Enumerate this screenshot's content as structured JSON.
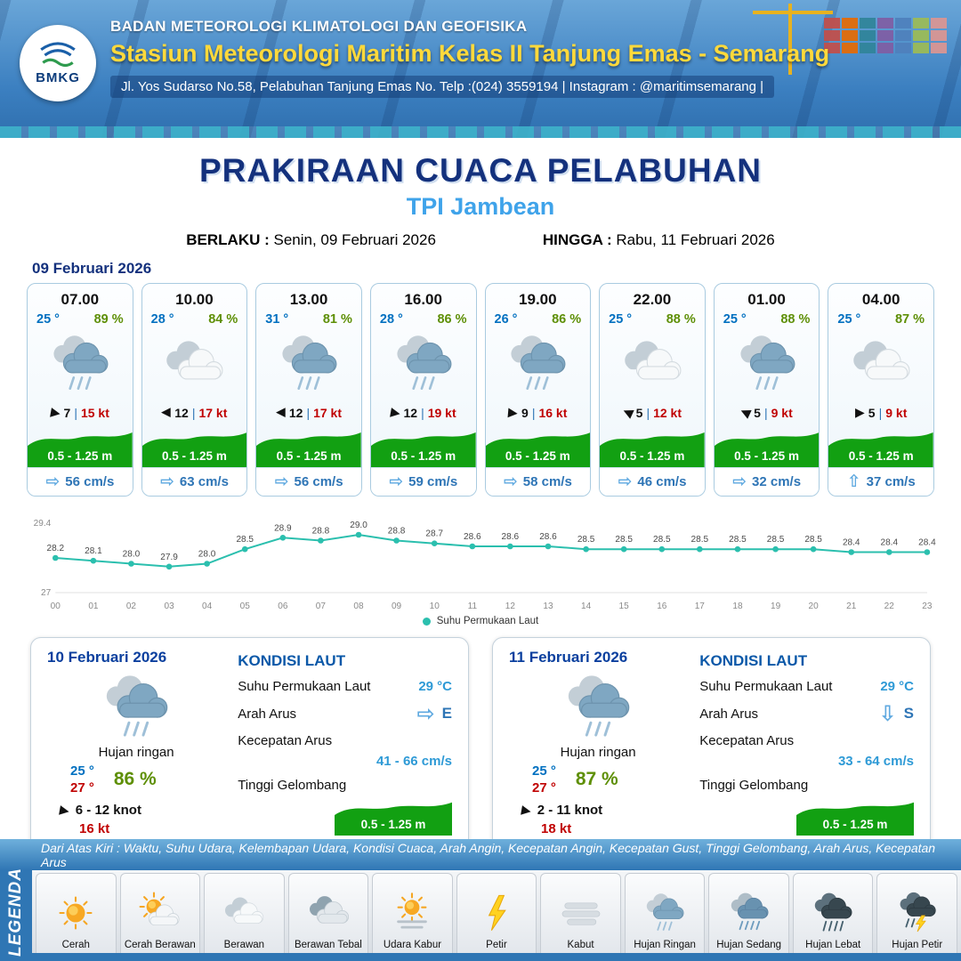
{
  "header": {
    "logo_text": "BMKG",
    "org": "BADAN METEOROLOGI KLIMATOLOGI DAN GEOFISIKA",
    "station": "Stasiun Meteorologi Maritim Kelas II Tanjung Emas - Semarang",
    "address": "Jl. Yos Sudarso No.58, Pelabuhan Tanjung Emas No. Telp :(024) 3559194 | Instagram : @maritimsemarang |"
  },
  "title": {
    "main": "PRAKIRAAN CUACA PELABUHAN",
    "location": "TPI Jambean",
    "berlaku_label": "BERLAKU :",
    "berlaku_value": "Senin, 09 Februari 2026",
    "hingga_label": "HINGGA :",
    "hingga_value": "Rabu, 11 Februari 2026"
  },
  "forecast_date": "09 Februari 2026",
  "strings": {
    "wind_sep": "|"
  },
  "hourly_cards": [
    {
      "time": "07.00",
      "temp": "25 °",
      "humidity": "89 %",
      "weather_icon": "hujan-ringan",
      "wind_rot": 10,
      "wind_speed": "7",
      "gust": "15 kt",
      "wave": "0.5 - 1.25 m",
      "current_arrow": "E",
      "current": "56 cm/s"
    },
    {
      "time": "10.00",
      "temp": "28 °",
      "humidity": "84 %",
      "weather_icon": "berawan",
      "wind_rot": 180,
      "wind_speed": "12",
      "gust": "17 kt",
      "wave": "0.5 - 1.25 m",
      "current_arrow": "E",
      "current": "63 cm/s"
    },
    {
      "time": "13.00",
      "temp": "31 °",
      "humidity": "81 %",
      "weather_icon": "hujan-ringan",
      "wind_rot": 180,
      "wind_speed": "12",
      "gust": "17 kt",
      "wave": "0.5 - 1.25 m",
      "current_arrow": "E",
      "current": "56 cm/s"
    },
    {
      "time": "16.00",
      "temp": "28 °",
      "humidity": "86 %",
      "weather_icon": "hujan-ringan",
      "wind_rot": 10,
      "wind_speed": "12",
      "gust": "19 kt",
      "wave": "0.5 - 1.25 m",
      "current_arrow": "E",
      "current": "59 cm/s"
    },
    {
      "time": "19.00",
      "temp": "26 °",
      "humidity": "86 %",
      "weather_icon": "hujan-ringan",
      "wind_rot": 5,
      "wind_speed": "9",
      "gust": "16 kt",
      "wave": "0.5 - 1.25 m",
      "current_arrow": "E",
      "current": "58 cm/s"
    },
    {
      "time": "22.00",
      "temp": "25 °",
      "humidity": "88 %",
      "weather_icon": "berawan",
      "wind_rot": 205,
      "wind_speed": "5",
      "gust": "12 kt",
      "wave": "0.5 - 1.25 m",
      "current_arrow": "E",
      "current": "46 cm/s"
    },
    {
      "time": "01.00",
      "temp": "25 °",
      "humidity": "88 %",
      "weather_icon": "hujan-ringan",
      "wind_rot": 205,
      "wind_speed": "5",
      "gust": "9 kt",
      "wave": "0.5 - 1.25 m",
      "current_arrow": "E",
      "current": "32 cm/s"
    },
    {
      "time": "04.00",
      "temp": "25 °",
      "humidity": "87 %",
      "weather_icon": "berawan",
      "wind_rot": 0,
      "wind_speed": "5",
      "gust": "9 kt",
      "wave": "0.5 - 1.25 m",
      "current_arrow": "N",
      "current": "37 cm/s"
    }
  ],
  "chart_data": {
    "type": "line",
    "x": [
      "00",
      "01",
      "02",
      "03",
      "04",
      "05",
      "06",
      "07",
      "08",
      "09",
      "10",
      "11",
      "12",
      "13",
      "14",
      "15",
      "16",
      "17",
      "18",
      "19",
      "20",
      "21",
      "22",
      "23"
    ],
    "values": [
      28.2,
      28.1,
      28.0,
      27.9,
      28.0,
      28.5,
      28.9,
      28.8,
      29.0,
      28.8,
      28.7,
      28.6,
      28.6,
      28.6,
      28.5,
      28.5,
      28.5,
      28.5,
      28.5,
      28.5,
      28.5,
      28.4,
      28.4,
      28.4
    ],
    "ylim": [
      27,
      29.4
    ],
    "ytick_labels": [
      "29.4",
      "27"
    ],
    "legend": "Suhu Permukaan Laut",
    "legend_position": "bottom-center",
    "grid": false,
    "line_color": "#2bbfae"
  },
  "daily_cards": [
    {
      "date": "10 Februari 2026",
      "weather_icon": "hujan-ringan",
      "condition": "Hujan ringan",
      "temp_min": "25 °",
      "temp_max": "27 °",
      "humidity": "86 %",
      "wind_rot": 10,
      "wind_range": "6  - 12 knot",
      "gust": "16 kt",
      "sea_title": "KONDISI LAUT",
      "sst_label": "Suhu Permukaan Laut",
      "sst_value": "29 °C",
      "current_dir_label": "Arah Arus",
      "current_dir_arrow": "E",
      "current_dir": "E",
      "current_speed_label": "Kecepatan Arus",
      "current_speed": "41 - 66 cm/s",
      "wave_label": "Tinggi Gelombang",
      "wave": "0.5 - 1.25 m"
    },
    {
      "date": "11 Februari 2026",
      "weather_icon": "hujan-ringan",
      "condition": "Hujan ringan",
      "temp_min": "25 °",
      "temp_max": "27 °",
      "humidity": "87 %",
      "wind_rot": 10,
      "wind_range": "2  - 11 knot",
      "gust": "18 kt",
      "sea_title": "KONDISI LAUT",
      "sst_label": "Suhu Permukaan Laut",
      "sst_value": "29 °C",
      "current_dir_label": "Arah Arus",
      "current_dir_arrow": "S",
      "current_dir": "S",
      "current_speed_label": "Kecepatan Arus",
      "current_speed": "33 - 64 cm/s",
      "wave_label": "Tinggi Gelombang",
      "wave": "0.5 - 1.25 m"
    }
  ],
  "legend": {
    "description": "Dari Atas Kiri : Waktu, Suhu Udara, Kelembapan Udara, Kondisi Cuaca, Arah Angin, Kecepatan Angin, Kecepatan Gust, Tinggi Gelombang, Arah Arus, Kecepatan Arus",
    "side_label": "LEGENDA",
    "items": [
      {
        "label": "Cerah",
        "icon": "cerah"
      },
      {
        "label": "Cerah Berawan",
        "icon": "cerah-berawan"
      },
      {
        "label": "Berawan",
        "icon": "berawan"
      },
      {
        "label": "Berawan Tebal",
        "icon": "berawan-tebal"
      },
      {
        "label": "Udara Kabur",
        "icon": "udara-kabur"
      },
      {
        "label": "Petir",
        "icon": "petir"
      },
      {
        "label": "Kabut",
        "icon": "kabut"
      },
      {
        "label": "Hujan Ringan",
        "icon": "hujan-ringan"
      },
      {
        "label": "Hujan Sedang",
        "icon": "hujan-sedang"
      },
      {
        "label": "Hujan Lebat",
        "icon": "hujan-lebat"
      },
      {
        "label": "Hujan Petir",
        "icon": "hujan-petir"
      }
    ]
  },
  "colors": {
    "title_navy": "#14317d",
    "subtitle_blue": "#3fa3ea",
    "temp_blue": "#0070c0",
    "humidity_green": "#5e8f06",
    "gust_red": "#c00000",
    "wave_green": "#12a012",
    "current_blue": "#2e75b6",
    "chart_teal": "#2bbfae",
    "header_blue": "#3b7fc0",
    "station_yellow": "#ffd93b"
  }
}
